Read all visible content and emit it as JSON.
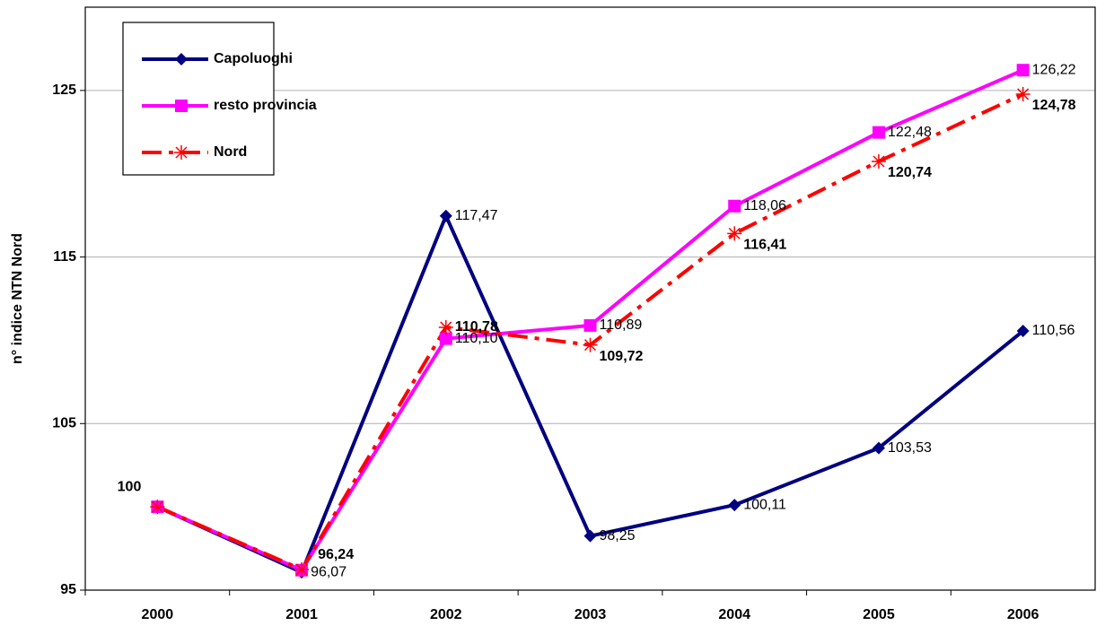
{
  "chart_data": {
    "type": "line",
    "y_label": "n° indice NTN Nord",
    "categories": [
      "2000",
      "2001",
      "2002",
      "2003",
      "2004",
      "2005",
      "2006"
    ],
    "series": [
      {
        "name": "Capoluoghi",
        "color": "#000080",
        "marker": "diamond",
        "values": [
          100,
          96.07,
          117.47,
          98.25,
          100.11,
          103.53,
          110.56
        ],
        "value_labels": [
          null,
          "96,07",
          "117,47",
          "98,25",
          "100,11",
          "103,53",
          "110,56"
        ]
      },
      {
        "name": "resto provincia",
        "color": "#ff00ff",
        "marker": "square",
        "values": [
          100,
          96.2,
          110.1,
          110.89,
          118.06,
          122.48,
          126.22
        ],
        "value_labels": [
          null,
          null,
          "110,10",
          "110,89",
          "118,06",
          "122,48",
          "126,22"
        ]
      },
      {
        "name": "Nord",
        "color": "#ff0000",
        "marker": "asterisk",
        "dashed": true,
        "values": [
          100,
          96.24,
          110.78,
          109.72,
          116.41,
          120.74,
          124.78
        ],
        "value_labels": [
          "100",
          "96,24",
          "110,78",
          "109,72",
          "116,41",
          "120,74",
          "124,78"
        ]
      }
    ],
    "ylim": [
      95,
      130
    ],
    "yticks": [
      95,
      105,
      115,
      125
    ],
    "grid": true,
    "legend": "top-left"
  }
}
